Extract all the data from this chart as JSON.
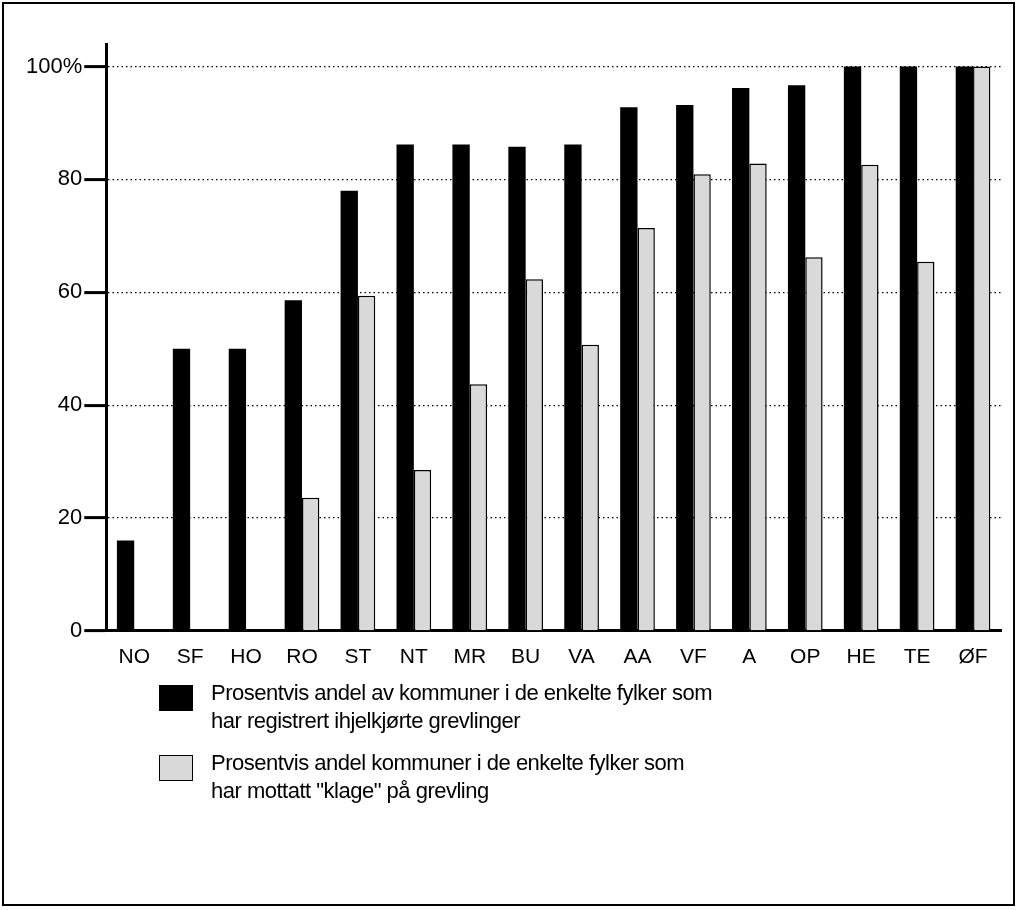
{
  "chart_data": {
    "type": "bar",
    "categories": [
      "NO",
      "SF",
      "HO",
      "RO",
      "ST",
      "NT",
      "MR",
      "BU",
      "VA",
      "AA",
      "VF",
      "A",
      "OP",
      "HE",
      "TE",
      "ØF"
    ],
    "series": [
      {
        "name": "Prosentvis andel av kommuner i de enkelte fylker som har registrert ihjelkjørte grevlinger",
        "color": "#000000",
        "values": [
          16,
          50,
          50,
          58.6,
          78,
          86.2,
          86.2,
          85.8,
          86.2,
          92.8,
          93.2,
          96.2,
          96.7,
          100,
          100,
          100
        ]
      },
      {
        "name": "Prosentvis andel kommuner i de enkelte fylker som har mottatt \"klage\" på grevling",
        "color": "#d9d9d9",
        "values": [
          null,
          null,
          null,
          23.6,
          59.4,
          28.5,
          43.7,
          62.3,
          50.7,
          71.4,
          80.9,
          82.8,
          66.2,
          82.6,
          65.4,
          100
        ]
      }
    ],
    "ylim": [
      0,
      104
    ],
    "yticks": [
      0,
      20,
      40,
      60,
      80,
      {
        "value": 100,
        "label": "100%"
      }
    ],
    "grid": "y",
    "legend": "bottom"
  }
}
